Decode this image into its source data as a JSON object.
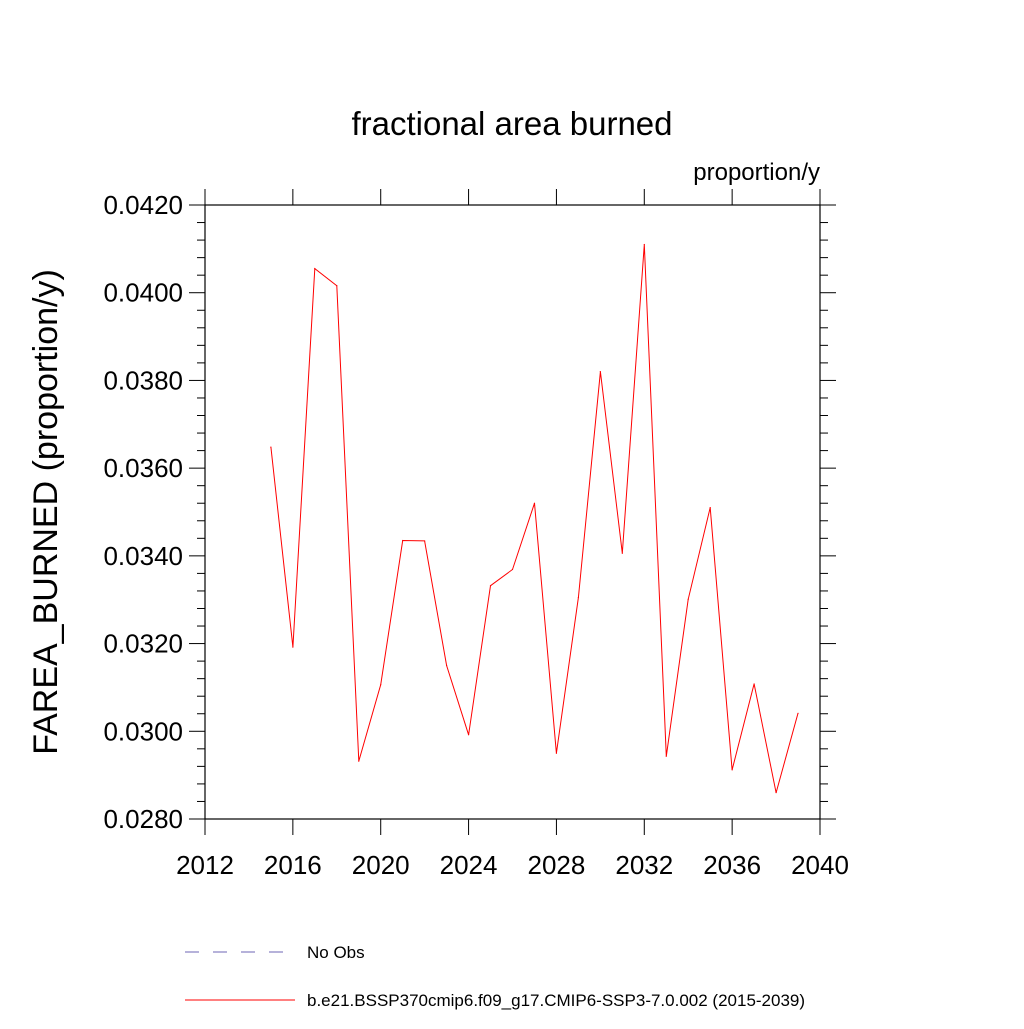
{
  "chart_data": {
    "type": "line",
    "title": "fractional area burned",
    "units_label": "proportion/y",
    "xlabel": "",
    "ylabel": "FAREA_BURNED  (proportion/y)",
    "xlim": [
      2012,
      2040
    ],
    "ylim": [
      0.028,
      0.042
    ],
    "x_ticks": [
      2012,
      2016,
      2020,
      2024,
      2028,
      2032,
      2036,
      2040
    ],
    "x_tick_labels": [
      "2012",
      "2016",
      "2020",
      "2024",
      "2028",
      "2032",
      "2036",
      "2040"
    ],
    "y_ticks": [
      0.028,
      0.03,
      0.032,
      0.034,
      0.036,
      0.038,
      0.04,
      0.042
    ],
    "y_tick_labels": [
      "0.0280",
      "0.0300",
      "0.0320",
      "0.0340",
      "0.0360",
      "0.0380",
      "0.0400",
      "0.0420"
    ],
    "series": [
      {
        "name": "b.e21.BSSP370cmip6.f09_g17.CMIP6-SSP3-7.0.002 (2015-2039)",
        "color": "#ff0000",
        "x": [
          2015,
          2016,
          2017,
          2018,
          2019,
          2020,
          2021,
          2022,
          2023,
          2024,
          2025,
          2026,
          2027,
          2028,
          2029,
          2030,
          2031,
          2032,
          2033,
          2034,
          2035,
          2036,
          2037,
          2038,
          2039
        ],
        "y": [
          0.03648,
          0.03192,
          0.04055,
          0.04016,
          0.02932,
          0.03106,
          0.03435,
          0.03434,
          0.0315,
          0.02992,
          0.03332,
          0.03369,
          0.0352,
          0.0295,
          0.03305,
          0.0382,
          0.03406,
          0.0411,
          0.02943,
          0.03301,
          0.0351,
          0.02912,
          0.03108,
          0.0286,
          0.03041
        ]
      }
    ],
    "legend": [
      {
        "label": "No Obs",
        "color": "#6c64b4",
        "style": "dashed"
      },
      {
        "label": "b.e21.BSSP370cmip6.f09_g17.CMIP6-SSP3-7.0.002 (2015-2039)",
        "color": "#ff0000",
        "style": "solid"
      }
    ],
    "legend_position": "bottom"
  }
}
